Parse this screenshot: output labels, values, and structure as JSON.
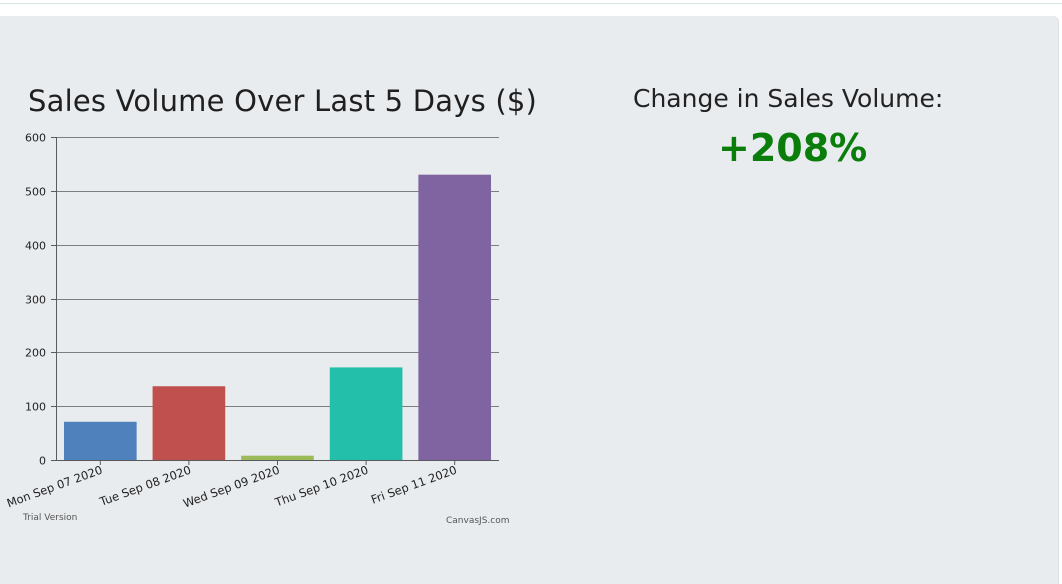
{
  "chart_data": {
    "type": "bar",
    "title": "Sales Volume Over Last 5 Days ($)",
    "xlabel": "",
    "ylabel": "",
    "categories": [
      "Mon Sep 07 2020",
      "Tue Sep 08 2020",
      "Wed Sep 09 2020",
      "Thu Sep 10 2020",
      "Fri Sep 11 2020"
    ],
    "values": [
      71,
      137,
      8,
      172,
      530
    ],
    "colors": [
      "#4f81bc",
      "#c0504e",
      "#9bbb58",
      "#23bfaa",
      "#8064a1"
    ],
    "ylim": [
      0,
      600
    ],
    "yticks": [
      0,
      100,
      200,
      300,
      400,
      500,
      600
    ],
    "grid": true,
    "legend": "none"
  },
  "credits": {
    "left": "Trial Version",
    "right": "CanvasJS.com"
  },
  "summary": {
    "label": "Change in Sales Volume:",
    "value": "+208%",
    "value_color": "#0a7d0a"
  }
}
